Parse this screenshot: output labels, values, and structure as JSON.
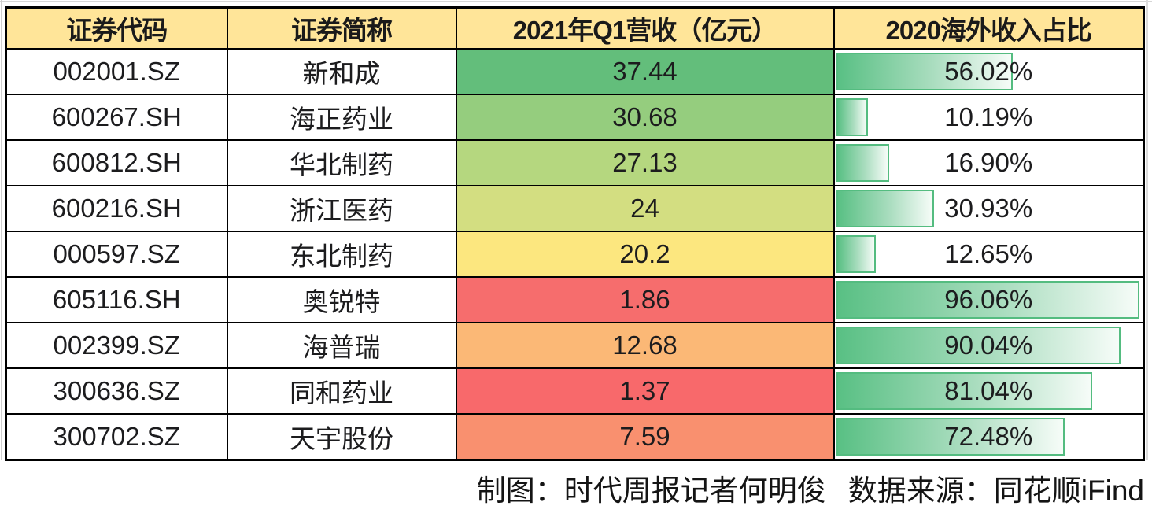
{
  "table": {
    "header_bg": "#FFE599",
    "headers": [
      "证券代码",
      "证券简称",
      "2021年Q1营收（亿元）",
      "2020海外收入占比"
    ],
    "rows": [
      {
        "code": "002001.SZ",
        "name": "新和成",
        "revenue": "37.44",
        "revenue_color": "#63BE7B",
        "overseas": "56.02%",
        "overseas_value": 56.02
      },
      {
        "code": "600267.SH",
        "name": "海正药业",
        "revenue": "30.68",
        "revenue_color": "#95CD7E",
        "overseas": "10.19%",
        "overseas_value": 10.19
      },
      {
        "code": "600812.SH",
        "name": "华北制药",
        "revenue": "27.13",
        "revenue_color": "#B5D77F",
        "overseas": "16.90%",
        "overseas_value": 16.9
      },
      {
        "code": "600216.SH",
        "name": "浙江医药",
        "revenue": "24",
        "revenue_color": "#D3DE81",
        "overseas": "30.93%",
        "overseas_value": 30.93
      },
      {
        "code": "000597.SZ",
        "name": "东北制药",
        "revenue": "20.2",
        "revenue_color": "#FCE77F",
        "overseas": "12.65%",
        "overseas_value": 12.65
      },
      {
        "code": "605116.SH",
        "name": "奥锐特",
        "revenue": "1.86",
        "revenue_color": "#F66D6D",
        "overseas": "96.06%",
        "overseas_value": 96.06
      },
      {
        "code": "002399.SZ",
        "name": "海普瑞",
        "revenue": "12.68",
        "revenue_color": "#FBB876",
        "overseas": "90.04%",
        "overseas_value": 90.04
      },
      {
        "code": "300636.SZ",
        "name": "同和药业",
        "revenue": "1.37",
        "revenue_color": "#F8696B",
        "overseas": "81.04%",
        "overseas_value": 81.04
      },
      {
        "code": "300702.SZ",
        "name": "天宇股份",
        "revenue": "7.59",
        "revenue_color": "#F9906F",
        "overseas": "72.48%",
        "overseas_value": 72.48
      }
    ],
    "bar": {
      "border": "#54BC80",
      "fill_start": "#59C084",
      "fill_mid": "#AADDBF",
      "fill_end": "#F6FCF8"
    }
  },
  "footer": {
    "credit": "制图：时代周报记者何明俊",
    "source": "数据来源：同花顺iFind"
  },
  "chart_data": {
    "type": "table",
    "title": "2021年Q1营收与2020海外收入占比",
    "columns": [
      "证券代码",
      "证券简称",
      "2021年Q1营收（亿元）",
      "2020海外收入占比"
    ],
    "rows": [
      [
        "002001.SZ",
        "新和成",
        37.44,
        56.02
      ],
      [
        "600267.SH",
        "海正药业",
        30.68,
        10.19
      ],
      [
        "600812.SH",
        "华北制药",
        27.13,
        16.9
      ],
      [
        "600216.SH",
        "浙江医药",
        24,
        30.93
      ],
      [
        "000597.SZ",
        "东北制药",
        20.2,
        12.65
      ],
      [
        "605116.SH",
        "奥锐特",
        1.86,
        96.06
      ],
      [
        "002399.SZ",
        "海普瑞",
        12.68,
        90.04
      ],
      [
        "300636.SZ",
        "同和药业",
        1.37,
        81.04
      ],
      [
        "300702.SZ",
        "天宇股份",
        7.59,
        72.48
      ]
    ],
    "conditional_formatting": {
      "revenue_column": "red-yellow-green 3-color scale (min 1.37 red, mid 20.2 yellow, max 37.44 green)",
      "overseas_column": "green gradient data bars scaled to max 96.06%"
    },
    "source_note": "制图：时代周报记者何明俊 数据来源：同花顺iFind"
  }
}
